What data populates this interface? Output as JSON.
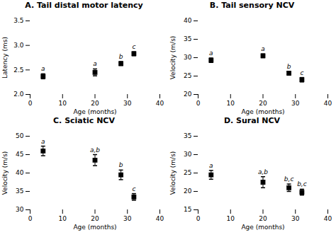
{
  "chart_data": [
    {
      "type": "scatter",
      "title": "A. Tail distal motor latency",
      "xlabel": "Age (months)",
      "ylabel": "Latency (ms)",
      "x": [
        4,
        20,
        28,
        32
      ],
      "values": [
        2.37,
        2.45,
        2.63,
        2.83
      ],
      "errors": [
        0.05,
        0.07,
        0.04,
        0.04
      ],
      "annotations": [
        "a",
        "a",
        "b",
        "c"
      ],
      "xlim": [
        0,
        40
      ],
      "xticks": [
        0,
        10,
        20,
        30,
        40
      ],
      "ylim": [
        2.0,
        3.5
      ],
      "yticks": [
        {
          "value": 2.0,
          "label": "2.0"
        },
        2.5,
        {
          "value": 3.0,
          "label": "3.0"
        },
        3.5
      ],
      "marker": "square",
      "color": "black"
    },
    {
      "type": "scatter",
      "title": "B. Tail sensory NCV",
      "xlabel": "Age (months)",
      "ylabel": "Velocity (m/s)",
      "x": [
        4,
        20,
        28,
        32
      ],
      "values": [
        29.3,
        30.5,
        25.8,
        24.0
      ],
      "errors": [
        0.6,
        0.5,
        0.5,
        0.6
      ],
      "annotations": [
        "a",
        "a",
        "b",
        "c"
      ],
      "xlim": [
        0,
        40
      ],
      "xticks": [
        0,
        10,
        20,
        30,
        40
      ],
      "ylim": [
        20,
        40
      ],
      "yticks": [
        20,
        25,
        30,
        35,
        40
      ],
      "marker": "square",
      "color": "black"
    },
    {
      "type": "scatter",
      "title": "C. Sciatic NCV",
      "xlabel": "Age (months)",
      "ylabel": "Velocity (m/s)",
      "x": [
        4,
        20,
        28,
        32
      ],
      "values": [
        46.0,
        43.5,
        39.5,
        33.5
      ],
      "errors": [
        1.3,
        1.5,
        1.3,
        0.9
      ],
      "annotations": [
        "a",
        "a,b",
        "b",
        "c"
      ],
      "xlim": [
        0,
        40
      ],
      "xticks": [
        0,
        10,
        20,
        30,
        40
      ],
      "ylim": [
        30,
        50
      ],
      "yticks": [
        30,
        35,
        40,
        45,
        50
      ],
      "marker": "square",
      "color": "black"
    },
    {
      "type": "scatter",
      "title": "D. Sural NCV",
      "xlabel": "Age (months)",
      "ylabel": "Velocity (m/s)",
      "x": [
        4,
        20,
        28,
        32
      ],
      "values": [
        24.5,
        22.5,
        21.0,
        19.8
      ],
      "errors": [
        1.2,
        1.5,
        1.0,
        0.8
      ],
      "annotations": [
        "a",
        "a,b",
        "b,c",
        "b,c"
      ],
      "xlim": [
        0,
        40
      ],
      "xticks": [
        0,
        10,
        20,
        30,
        40
      ],
      "ylim": [
        15,
        35
      ],
      "yticks": [
        15,
        20,
        25,
        30,
        35
      ],
      "marker": "square",
      "color": "black"
    }
  ]
}
